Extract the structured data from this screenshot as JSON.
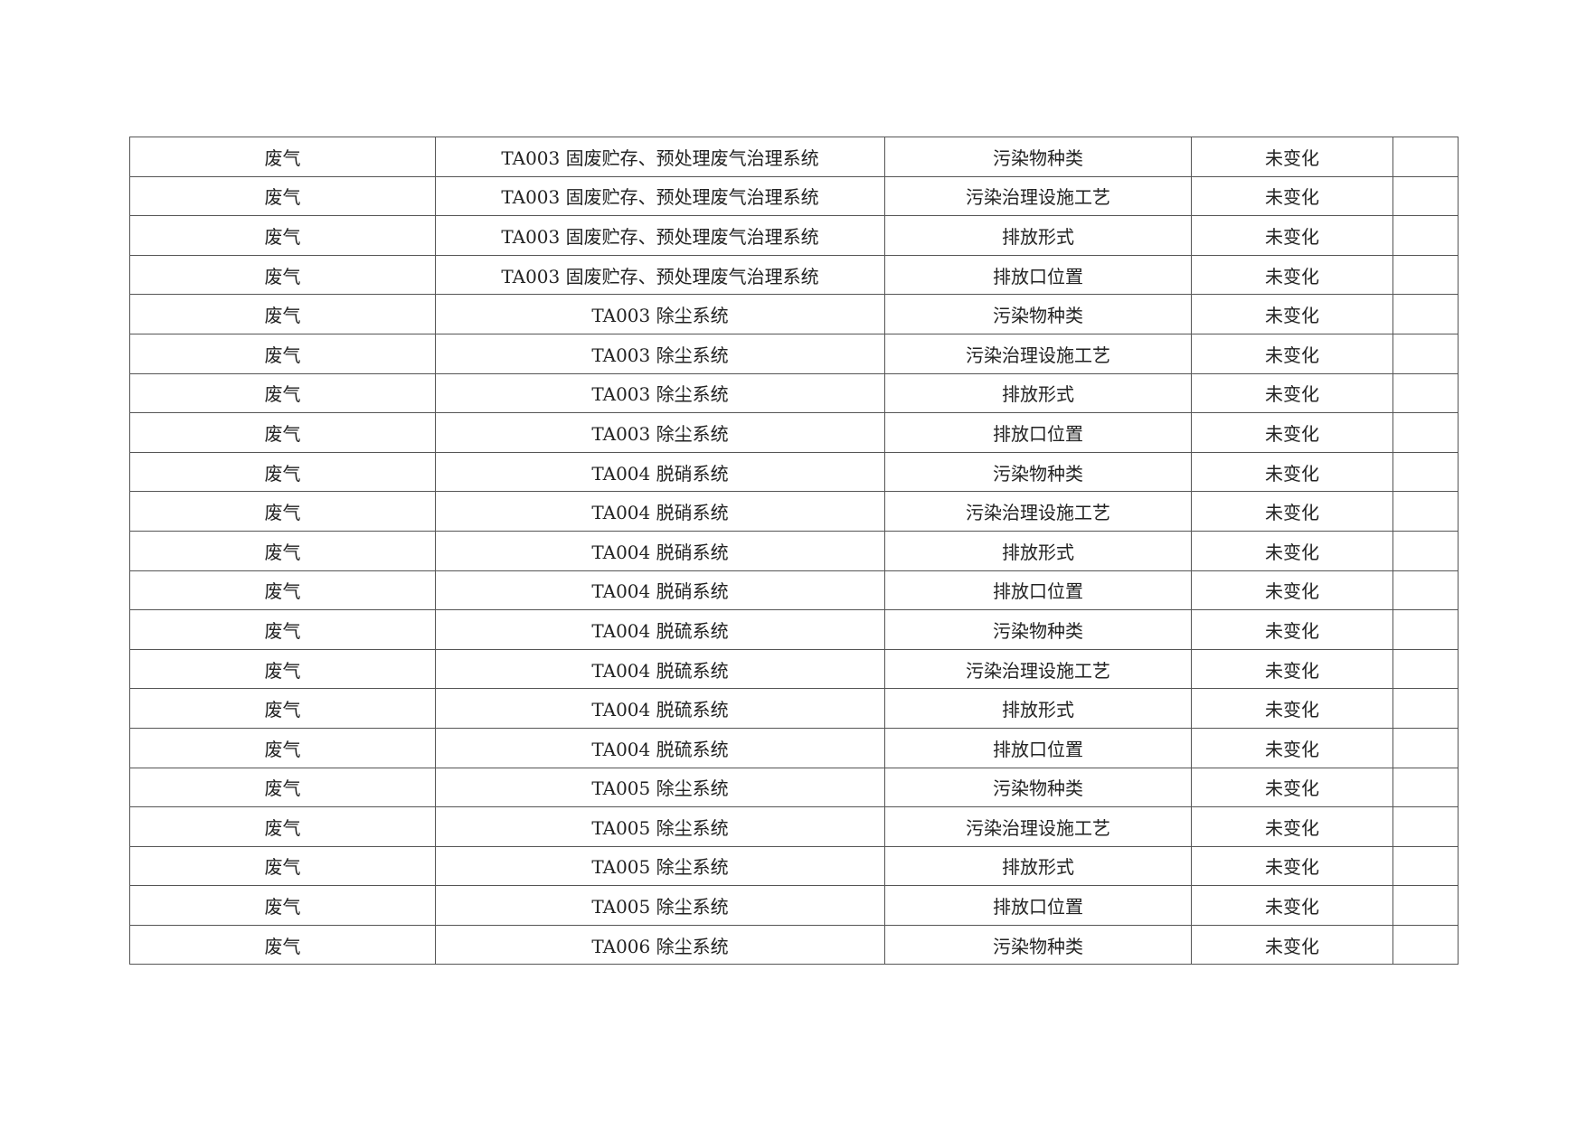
{
  "rows": [
    [
      "废气",
      "TA003 固废贮存、预处理废气治理系统",
      "污染物种类",
      "未变化",
      ""
    ],
    [
      "废气",
      "TA003 固废贮存、预处理废气治理系统",
      "污染治理设施工艺",
      "未变化",
      ""
    ],
    [
      "废气",
      "TA003 固废贮存、预处理废气治理系统",
      "排放形式",
      "未变化",
      ""
    ],
    [
      "废气",
      "TA003 固废贮存、预处理废气治理系统",
      "排放口位置",
      "未变化",
      ""
    ],
    [
      "废气",
      "TA003 除尘系统",
      "污染物种类",
      "未变化",
      ""
    ],
    [
      "废气",
      "TA003 除尘系统",
      "污染治理设施工艺",
      "未变化",
      ""
    ],
    [
      "废气",
      "TA003 除尘系统",
      "排放形式",
      "未变化",
      ""
    ],
    [
      "废气",
      "TA003 除尘系统",
      "排放口位置",
      "未变化",
      ""
    ],
    [
      "废气",
      "TA004 脱硝系统",
      "污染物种类",
      "未变化",
      ""
    ],
    [
      "废气",
      "TA004 脱硝系统",
      "污染治理设施工艺",
      "未变化",
      ""
    ],
    [
      "废气",
      "TA004 脱硝系统",
      "排放形式",
      "未变化",
      ""
    ],
    [
      "废气",
      "TA004 脱硝系统",
      "排放口位置",
      "未变化",
      ""
    ],
    [
      "废气",
      "TA004 脱硫系统",
      "污染物种类",
      "未变化",
      ""
    ],
    [
      "废气",
      "TA004 脱硫系统",
      "污染治理设施工艺",
      "未变化",
      ""
    ],
    [
      "废气",
      "TA004 脱硫系统",
      "排放形式",
      "未变化",
      ""
    ],
    [
      "废气",
      "TA004 脱硫系统",
      "排放口位置",
      "未变化",
      ""
    ],
    [
      "废气",
      "TA005 除尘系统",
      "污染物种类",
      "未变化",
      ""
    ],
    [
      "废气",
      "TA005 除尘系统",
      "污染治理设施工艺",
      "未变化",
      ""
    ],
    [
      "废气",
      "TA005 除尘系统",
      "排放形式",
      "未变化",
      ""
    ],
    [
      "废气",
      "TA005 除尘系统",
      "排放口位置",
      "未变化",
      ""
    ],
    [
      "废气",
      "TA006 除尘系统",
      "污染物种类",
      "未变化",
      ""
    ]
  ]
}
